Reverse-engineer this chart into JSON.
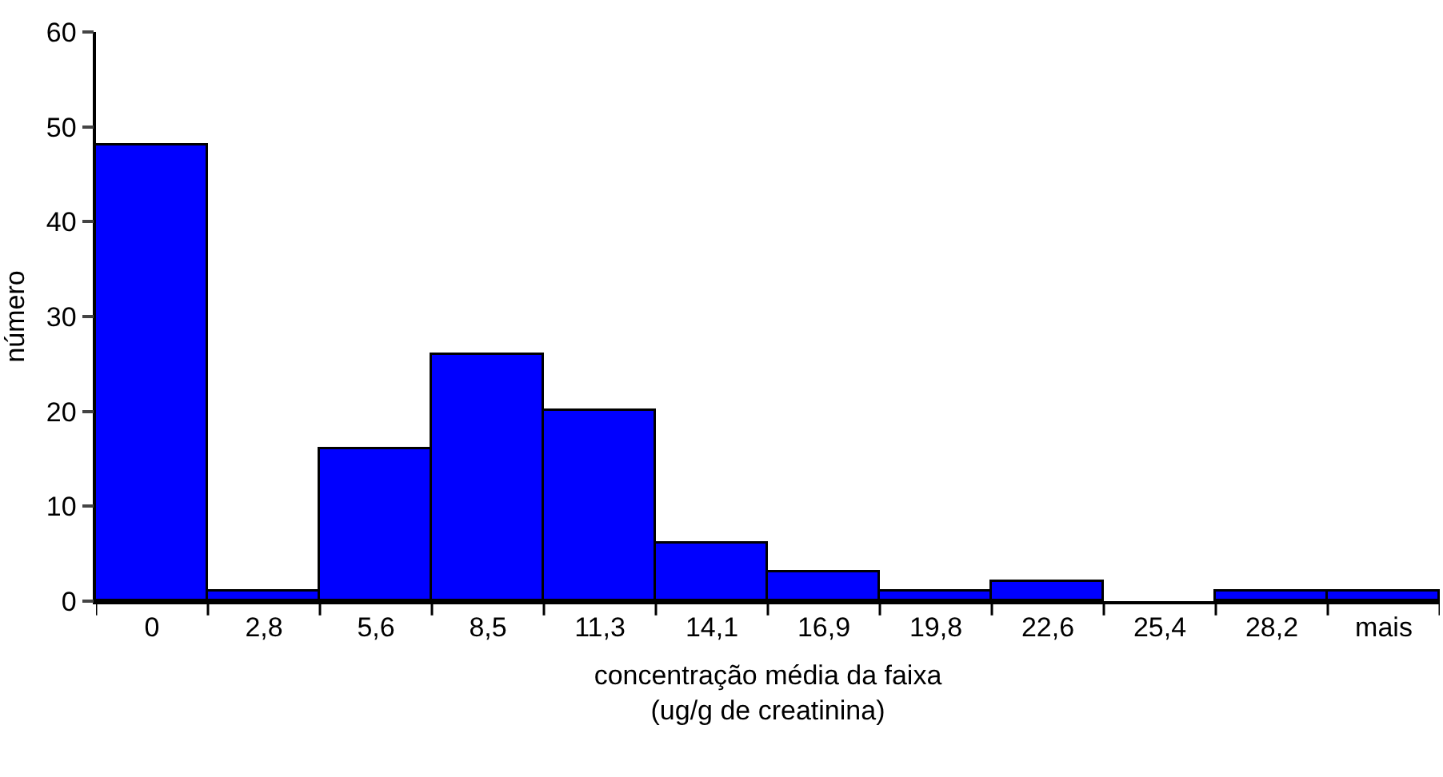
{
  "chart_data": {
    "type": "bar",
    "xlabel": "concentração média da faixa\n(ug/g de creatinina)",
    "ylabel": "número",
    "categories": [
      "0",
      "2,8",
      "5,6",
      "8,5",
      "11,3",
      "14,1",
      "16,9",
      "19,8",
      "22,6",
      "25,4",
      "28,2",
      "mais"
    ],
    "values": [
      48,
      1,
      16,
      26,
      20,
      6,
      3,
      1,
      2,
      0,
      1,
      1
    ],
    "color": "#0000ff",
    "ylim": [
      0,
      60
    ],
    "yticks": [
      0,
      10,
      20,
      30,
      40,
      50,
      60
    ],
    "legend": false
  }
}
